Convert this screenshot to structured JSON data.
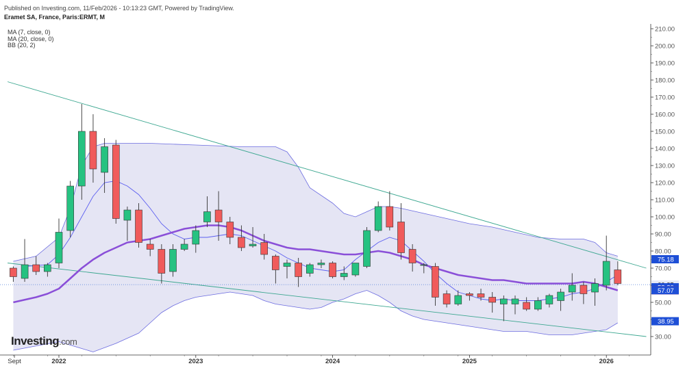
{
  "header": {
    "published": "Published on Investing.com, 11/Feb/2026 - 10:13:23 GMT, Powered by TradingView.",
    "symbol": "Eramet SA, France, Paris:ERMT, M"
  },
  "indicators": [
    "MA (7, close, 0)",
    "MA (20, close, 0)",
    "BB (20, 2)"
  ],
  "logo": {
    "brand": "Investing",
    "domain": ".com"
  },
  "colors": {
    "up": "#26c281",
    "down": "#f05b5b",
    "ma20": "#8a4fd8",
    "ma7": "#5b5ef0",
    "bb_fill": "#dcdcf0",
    "trend": "#3aa68f",
    "price_line": "#4a78d8"
  },
  "chart_data": {
    "type": "candlestick",
    "interval": "M",
    "ylim": [
      26,
      212
    ],
    "y_ticks": [
      30,
      40,
      50,
      60,
      70,
      80,
      90,
      100,
      110,
      120,
      130,
      140,
      150,
      160,
      170,
      180,
      190,
      200,
      210
    ],
    "x_labels": [
      {
        "label": "Sept",
        "index": -3.9
      },
      {
        "label": "2022",
        "index": 0
      },
      {
        "label": "2023",
        "index": 12
      },
      {
        "label": "2024",
        "index": 24
      },
      {
        "label": "2025",
        "index": 36
      },
      {
        "label": "2026",
        "index": 48
      }
    ],
    "candles": [
      {
        "date": "2021-09",
        "o": 70,
        "h": 71,
        "l": 62,
        "c": 65
      },
      {
        "date": "2021-10",
        "o": 64,
        "h": 87,
        "l": 62,
        "c": 72
      },
      {
        "date": "2021-11",
        "o": 72,
        "h": 77,
        "l": 66,
        "c": 68
      },
      {
        "date": "2021-12",
        "o": 68,
        "h": 73,
        "l": 65,
        "c": 72
      },
      {
        "date": "2022-01",
        "o": 73,
        "h": 99,
        "l": 70,
        "c": 91
      },
      {
        "date": "2022-02",
        "o": 92,
        "h": 121,
        "l": 88,
        "c": 118
      },
      {
        "date": "2022-03",
        "o": 118,
        "h": 166,
        "l": 110,
        "c": 150
      },
      {
        "date": "2022-04",
        "o": 150,
        "h": 160,
        "l": 120,
        "c": 128
      },
      {
        "date": "2022-05",
        "o": 126,
        "h": 146,
        "l": 114,
        "c": 141
      },
      {
        "date": "2022-06",
        "o": 142,
        "h": 145,
        "l": 96,
        "c": 99
      },
      {
        "date": "2022-07",
        "o": 98,
        "h": 106,
        "l": 86,
        "c": 104
      },
      {
        "date": "2022-08",
        "o": 104,
        "h": 108,
        "l": 82,
        "c": 85
      },
      {
        "date": "2022-09",
        "o": 84,
        "h": 87,
        "l": 77,
        "c": 81
      },
      {
        "date": "2022-10",
        "o": 81,
        "h": 84,
        "l": 61,
        "c": 67
      },
      {
        "date": "2022-11",
        "o": 68,
        "h": 84,
        "l": 65,
        "c": 81
      },
      {
        "date": "2022-12",
        "o": 81,
        "h": 87,
        "l": 80,
        "c": 84
      },
      {
        "date": "2023-01",
        "o": 84,
        "h": 95,
        "l": 79,
        "c": 92
      },
      {
        "date": "2023-02",
        "o": 97,
        "h": 112,
        "l": 94,
        "c": 103
      },
      {
        "date": "2023-03",
        "o": 104,
        "h": 115,
        "l": 86,
        "c": 97
      },
      {
        "date": "2023-04",
        "o": 97,
        "h": 100,
        "l": 84,
        "c": 88
      },
      {
        "date": "2023-05",
        "o": 88,
        "h": 95,
        "l": 80,
        "c": 82
      },
      {
        "date": "2023-06",
        "o": 83,
        "h": 94,
        "l": 82,
        "c": 84
      },
      {
        "date": "2023-07",
        "o": 85,
        "h": 90,
        "l": 75,
        "c": 78
      },
      {
        "date": "2023-08",
        "o": 77,
        "h": 78,
        "l": 61,
        "c": 69
      },
      {
        "date": "2023-09",
        "o": 71,
        "h": 75,
        "l": 64,
        "c": 73
      },
      {
        "date": "2023-10",
        "o": 73,
        "h": 76,
        "l": 59,
        "c": 65
      },
      {
        "date": "2023-11",
        "o": 67,
        "h": 73,
        "l": 65,
        "c": 72
      },
      {
        "date": "2023-12",
        "o": 72,
        "h": 75,
        "l": 70,
        "c": 73
      },
      {
        "date": "2024-01",
        "o": 73,
        "h": 74,
        "l": 64,
        "c": 65
      },
      {
        "date": "2024-02",
        "o": 65,
        "h": 71,
        "l": 63,
        "c": 67
      },
      {
        "date": "2024-03",
        "o": 66,
        "h": 73,
        "l": 65,
        "c": 73
      },
      {
        "date": "2024-04",
        "o": 71,
        "h": 94,
        "l": 70,
        "c": 92
      },
      {
        "date": "2024-05",
        "o": 92,
        "h": 109,
        "l": 91,
        "c": 106
      },
      {
        "date": "2024-06",
        "o": 106,
        "h": 115,
        "l": 92,
        "c": 94
      },
      {
        "date": "2024-07",
        "o": 97,
        "h": 108,
        "l": 75,
        "c": 79
      },
      {
        "date": "2024-08",
        "o": 81,
        "h": 84,
        "l": 68,
        "c": 73
      },
      {
        "date": "2024-09",
        "o": 72,
        "h": 73,
        "l": 67,
        "c": 72
      },
      {
        "date": "2024-10",
        "o": 71,
        "h": 73,
        "l": 48,
        "c": 53
      },
      {
        "date": "2024-11",
        "o": 55,
        "h": 57,
        "l": 47,
        "c": 49
      },
      {
        "date": "2024-12",
        "o": 49,
        "h": 57,
        "l": 48,
        "c": 54
      },
      {
        "date": "2025-01",
        "o": 55,
        "h": 56,
        "l": 51,
        "c": 54
      },
      {
        "date": "2025-02",
        "o": 55,
        "h": 58,
        "l": 51,
        "c": 53
      },
      {
        "date": "2025-03",
        "o": 53,
        "h": 56,
        "l": 44,
        "c": 50
      },
      {
        "date": "2025-04",
        "o": 49,
        "h": 54,
        "l": 39,
        "c": 52
      },
      {
        "date": "2025-05",
        "o": 49,
        "h": 54,
        "l": 43,
        "c": 52
      },
      {
        "date": "2025-06",
        "o": 50,
        "h": 53,
        "l": 45,
        "c": 46
      },
      {
        "date": "2025-07",
        "o": 46,
        "h": 53,
        "l": 45,
        "c": 51
      },
      {
        "date": "2025-08",
        "o": 49,
        "h": 55,
        "l": 47,
        "c": 54
      },
      {
        "date": "2025-09",
        "o": 51,
        "h": 58,
        "l": 45,
        "c": 56
      },
      {
        "date": "2025-10",
        "o": 56,
        "h": 67,
        "l": 51,
        "c": 60
      },
      {
        "date": "2025-11",
        "o": 60,
        "h": 62,
        "l": 49,
        "c": 55
      },
      {
        "date": "2025-12",
        "o": 56,
        "h": 64,
        "l": 48,
        "c": 61
      },
      {
        "date": "2026-01",
        "o": 60,
        "h": 89,
        "l": 57,
        "c": 74
      },
      {
        "date": "2026-02",
        "o": 69,
        "h": 74,
        "l": 60,
        "c": 61
      }
    ],
    "ma20": [
      {
        "i": -4,
        "v": 50
      },
      {
        "i": -2,
        "v": 53
      },
      {
        "i": -1,
        "v": 55
      },
      {
        "i": 0,
        "v": 58
      },
      {
        "i": 1,
        "v": 64
      },
      {
        "i": 2,
        "v": 70
      },
      {
        "i": 3,
        "v": 75
      },
      {
        "i": 4,
        "v": 79
      },
      {
        "i": 5,
        "v": 82
      },
      {
        "i": 6,
        "v": 85
      },
      {
        "i": 7,
        "v": 86
      },
      {
        "i": 8,
        "v": 87
      },
      {
        "i": 9,
        "v": 89
      },
      {
        "i": 10,
        "v": 91
      },
      {
        "i": 11,
        "v": 93
      },
      {
        "i": 12,
        "v": 94
      },
      {
        "i": 13,
        "v": 95
      },
      {
        "i": 14,
        "v": 95
      },
      {
        "i": 15,
        "v": 94
      },
      {
        "i": 16,
        "v": 92
      },
      {
        "i": 17,
        "v": 89
      },
      {
        "i": 18,
        "v": 86
      },
      {
        "i": 19,
        "v": 84
      },
      {
        "i": 20,
        "v": 82
      },
      {
        "i": 21,
        "v": 81
      },
      {
        "i": 22,
        "v": 81
      },
      {
        "i": 23,
        "v": 80
      },
      {
        "i": 24,
        "v": 79
      },
      {
        "i": 25,
        "v": 78
      },
      {
        "i": 26,
        "v": 78
      },
      {
        "i": 27,
        "v": 79
      },
      {
        "i": 28,
        "v": 80
      },
      {
        "i": 29,
        "v": 79
      },
      {
        "i": 30,
        "v": 77
      },
      {
        "i": 31,
        "v": 75
      },
      {
        "i": 32,
        "v": 72
      },
      {
        "i": 33,
        "v": 70
      },
      {
        "i": 34,
        "v": 68
      },
      {
        "i": 35,
        "v": 66
      },
      {
        "i": 36,
        "v": 65
      },
      {
        "i": 37,
        "v": 64
      },
      {
        "i": 38,
        "v": 63
      },
      {
        "i": 39,
        "v": 63
      },
      {
        "i": 40,
        "v": 62
      },
      {
        "i": 41,
        "v": 61
      },
      {
        "i": 42,
        "v": 61
      },
      {
        "i": 43,
        "v": 61
      },
      {
        "i": 44,
        "v": 61
      },
      {
        "i": 45,
        "v": 61
      },
      {
        "i": 46,
        "v": 62
      },
      {
        "i": 47,
        "v": 61
      },
      {
        "i": 48,
        "v": 59
      },
      {
        "i": 49,
        "v": 57
      }
    ],
    "ma7": [
      {
        "i": -3,
        "v": 71
      },
      {
        "i": -1,
        "v": 72
      },
      {
        "i": 0,
        "v": 78
      },
      {
        "i": 1,
        "v": 88
      },
      {
        "i": 2,
        "v": 100
      },
      {
        "i": 3,
        "v": 112
      },
      {
        "i": 4,
        "v": 120
      },
      {
        "i": 5,
        "v": 121
      },
      {
        "i": 6,
        "v": 118
      },
      {
        "i": 7,
        "v": 113
      },
      {
        "i": 8,
        "v": 105
      },
      {
        "i": 9,
        "v": 96
      },
      {
        "i": 10,
        "v": 90
      },
      {
        "i": 11,
        "v": 87
      },
      {
        "i": 12,
        "v": 88
      },
      {
        "i": 13,
        "v": 88
      },
      {
        "i": 14,
        "v": 89
      },
      {
        "i": 15,
        "v": 90
      },
      {
        "i": 16,
        "v": 89
      },
      {
        "i": 17,
        "v": 86
      },
      {
        "i": 18,
        "v": 83
      },
      {
        "i": 19,
        "v": 80
      },
      {
        "i": 20,
        "v": 76
      },
      {
        "i": 21,
        "v": 73
      },
      {
        "i": 22,
        "v": 70
      },
      {
        "i": 23,
        "v": 69
      },
      {
        "i": 24,
        "v": 68
      },
      {
        "i": 25,
        "v": 69
      },
      {
        "i": 26,
        "v": 75
      },
      {
        "i": 27,
        "v": 80
      },
      {
        "i": 28,
        "v": 85
      },
      {
        "i": 29,
        "v": 88
      },
      {
        "i": 30,
        "v": 86
      },
      {
        "i": 31,
        "v": 80
      },
      {
        "i": 32,
        "v": 74
      },
      {
        "i": 33,
        "v": 67
      },
      {
        "i": 34,
        "v": 61
      },
      {
        "i": 35,
        "v": 56
      },
      {
        "i": 36,
        "v": 54
      },
      {
        "i": 37,
        "v": 52
      },
      {
        "i": 38,
        "v": 51
      },
      {
        "i": 39,
        "v": 52
      },
      {
        "i": 40,
        "v": 51
      },
      {
        "i": 41,
        "v": 51
      },
      {
        "i": 42,
        "v": 51
      },
      {
        "i": 43,
        "v": 52
      },
      {
        "i": 44,
        "v": 53
      },
      {
        "i": 45,
        "v": 55
      },
      {
        "i": 46,
        "v": 56
      },
      {
        "i": 47,
        "v": 58
      },
      {
        "i": 48,
        "v": 62
      },
      {
        "i": 49,
        "v": 66
      }
    ],
    "bb_upper": [
      {
        "i": -4,
        "v": 74
      },
      {
        "i": -2,
        "v": 77
      },
      {
        "i": 0,
        "v": 88
      },
      {
        "i": 1,
        "v": 105
      },
      {
        "i": 2,
        "v": 130
      },
      {
        "i": 3,
        "v": 141
      },
      {
        "i": 4,
        "v": 143
      },
      {
        "i": 5,
        "v": 143
      },
      {
        "i": 8,
        "v": 143
      },
      {
        "i": 12,
        "v": 142
      },
      {
        "i": 16,
        "v": 141
      },
      {
        "i": 19,
        "v": 141
      },
      {
        "i": 20,
        "v": 138
      },
      {
        "i": 21,
        "v": 129
      },
      {
        "i": 22,
        "v": 117
      },
      {
        "i": 24,
        "v": 108
      },
      {
        "i": 25,
        "v": 102
      },
      {
        "i": 26,
        "v": 100
      },
      {
        "i": 27,
        "v": 103
      },
      {
        "i": 28,
        "v": 106
      },
      {
        "i": 29,
        "v": 106
      },
      {
        "i": 30,
        "v": 105
      },
      {
        "i": 32,
        "v": 102
      },
      {
        "i": 34,
        "v": 99
      },
      {
        "i": 36,
        "v": 96
      },
      {
        "i": 38,
        "v": 94
      },
      {
        "i": 40,
        "v": 91
      },
      {
        "i": 42,
        "v": 88
      },
      {
        "i": 44,
        "v": 87
      },
      {
        "i": 46,
        "v": 87
      },
      {
        "i": 47,
        "v": 85
      },
      {
        "i": 48,
        "v": 79
      },
      {
        "i": 49,
        "v": 77
      }
    ],
    "bb_lower": [
      {
        "i": -4,
        "v": 22
      },
      {
        "i": 0,
        "v": 27
      },
      {
        "i": 2,
        "v": 23
      },
      {
        "i": 3,
        "v": 21
      },
      {
        "i": 5,
        "v": 26
      },
      {
        "i": 7,
        "v": 32
      },
      {
        "i": 8,
        "v": 38
      },
      {
        "i": 9,
        "v": 44
      },
      {
        "i": 10,
        "v": 48
      },
      {
        "i": 11,
        "v": 51
      },
      {
        "i": 12,
        "v": 53
      },
      {
        "i": 13,
        "v": 54
      },
      {
        "i": 14,
        "v": 55
      },
      {
        "i": 15,
        "v": 56
      },
      {
        "i": 16,
        "v": 55
      },
      {
        "i": 17,
        "v": 54
      },
      {
        "i": 18,
        "v": 51
      },
      {
        "i": 19,
        "v": 49
      },
      {
        "i": 20,
        "v": 48
      },
      {
        "i": 21,
        "v": 47
      },
      {
        "i": 22,
        "v": 46
      },
      {
        "i": 23,
        "v": 47
      },
      {
        "i": 24,
        "v": 50
      },
      {
        "i": 25,
        "v": 52
      },
      {
        "i": 26,
        "v": 55
      },
      {
        "i": 27,
        "v": 57
      },
      {
        "i": 28,
        "v": 54
      },
      {
        "i": 29,
        "v": 50
      },
      {
        "i": 30,
        "v": 45
      },
      {
        "i": 31,
        "v": 42
      },
      {
        "i": 32,
        "v": 40
      },
      {
        "i": 33,
        "v": 39
      },
      {
        "i": 34,
        "v": 38
      },
      {
        "i": 35,
        "v": 37
      },
      {
        "i": 36,
        "v": 36
      },
      {
        "i": 37,
        "v": 35
      },
      {
        "i": 38,
        "v": 34
      },
      {
        "i": 39,
        "v": 33
      },
      {
        "i": 40,
        "v": 33
      },
      {
        "i": 41,
        "v": 33
      },
      {
        "i": 42,
        "v": 32
      },
      {
        "i": 43,
        "v": 31
      },
      {
        "i": 44,
        "v": 31
      },
      {
        "i": 45,
        "v": 31
      },
      {
        "i": 46,
        "v": 32
      },
      {
        "i": 47,
        "v": 33
      },
      {
        "i": 48,
        "v": 34
      },
      {
        "i": 49,
        "v": 38
      }
    ],
    "trendlines": [
      {
        "name": "upper",
        "from": {
          "i": -4.5,
          "v": 179
        },
        "to": {
          "i": 51.5,
          "v": 70
        }
      },
      {
        "name": "lower",
        "from": {
          "i": -4.5,
          "v": 73
        },
        "to": {
          "i": 51.5,
          "v": 30
        }
      }
    ],
    "price_line": 60.35,
    "price_badges": [
      {
        "label": "75.18",
        "v": 75.18,
        "color": "#1e4fd6"
      },
      {
        "label": "60.35",
        "v": 60.35,
        "color": "#e6eaf6",
        "plain": true
      },
      {
        "label": "58.80",
        "v": 58.8,
        "color": "#1e4fd6"
      },
      {
        "label": "57.07",
        "v": 57.07,
        "color": "#e02020"
      },
      {
        "label": "57.07",
        "v": 57.07,
        "color": "#1e4fd6"
      },
      {
        "label": "38.95",
        "v": 38.95,
        "color": "#1e4fd6"
      }
    ]
  }
}
